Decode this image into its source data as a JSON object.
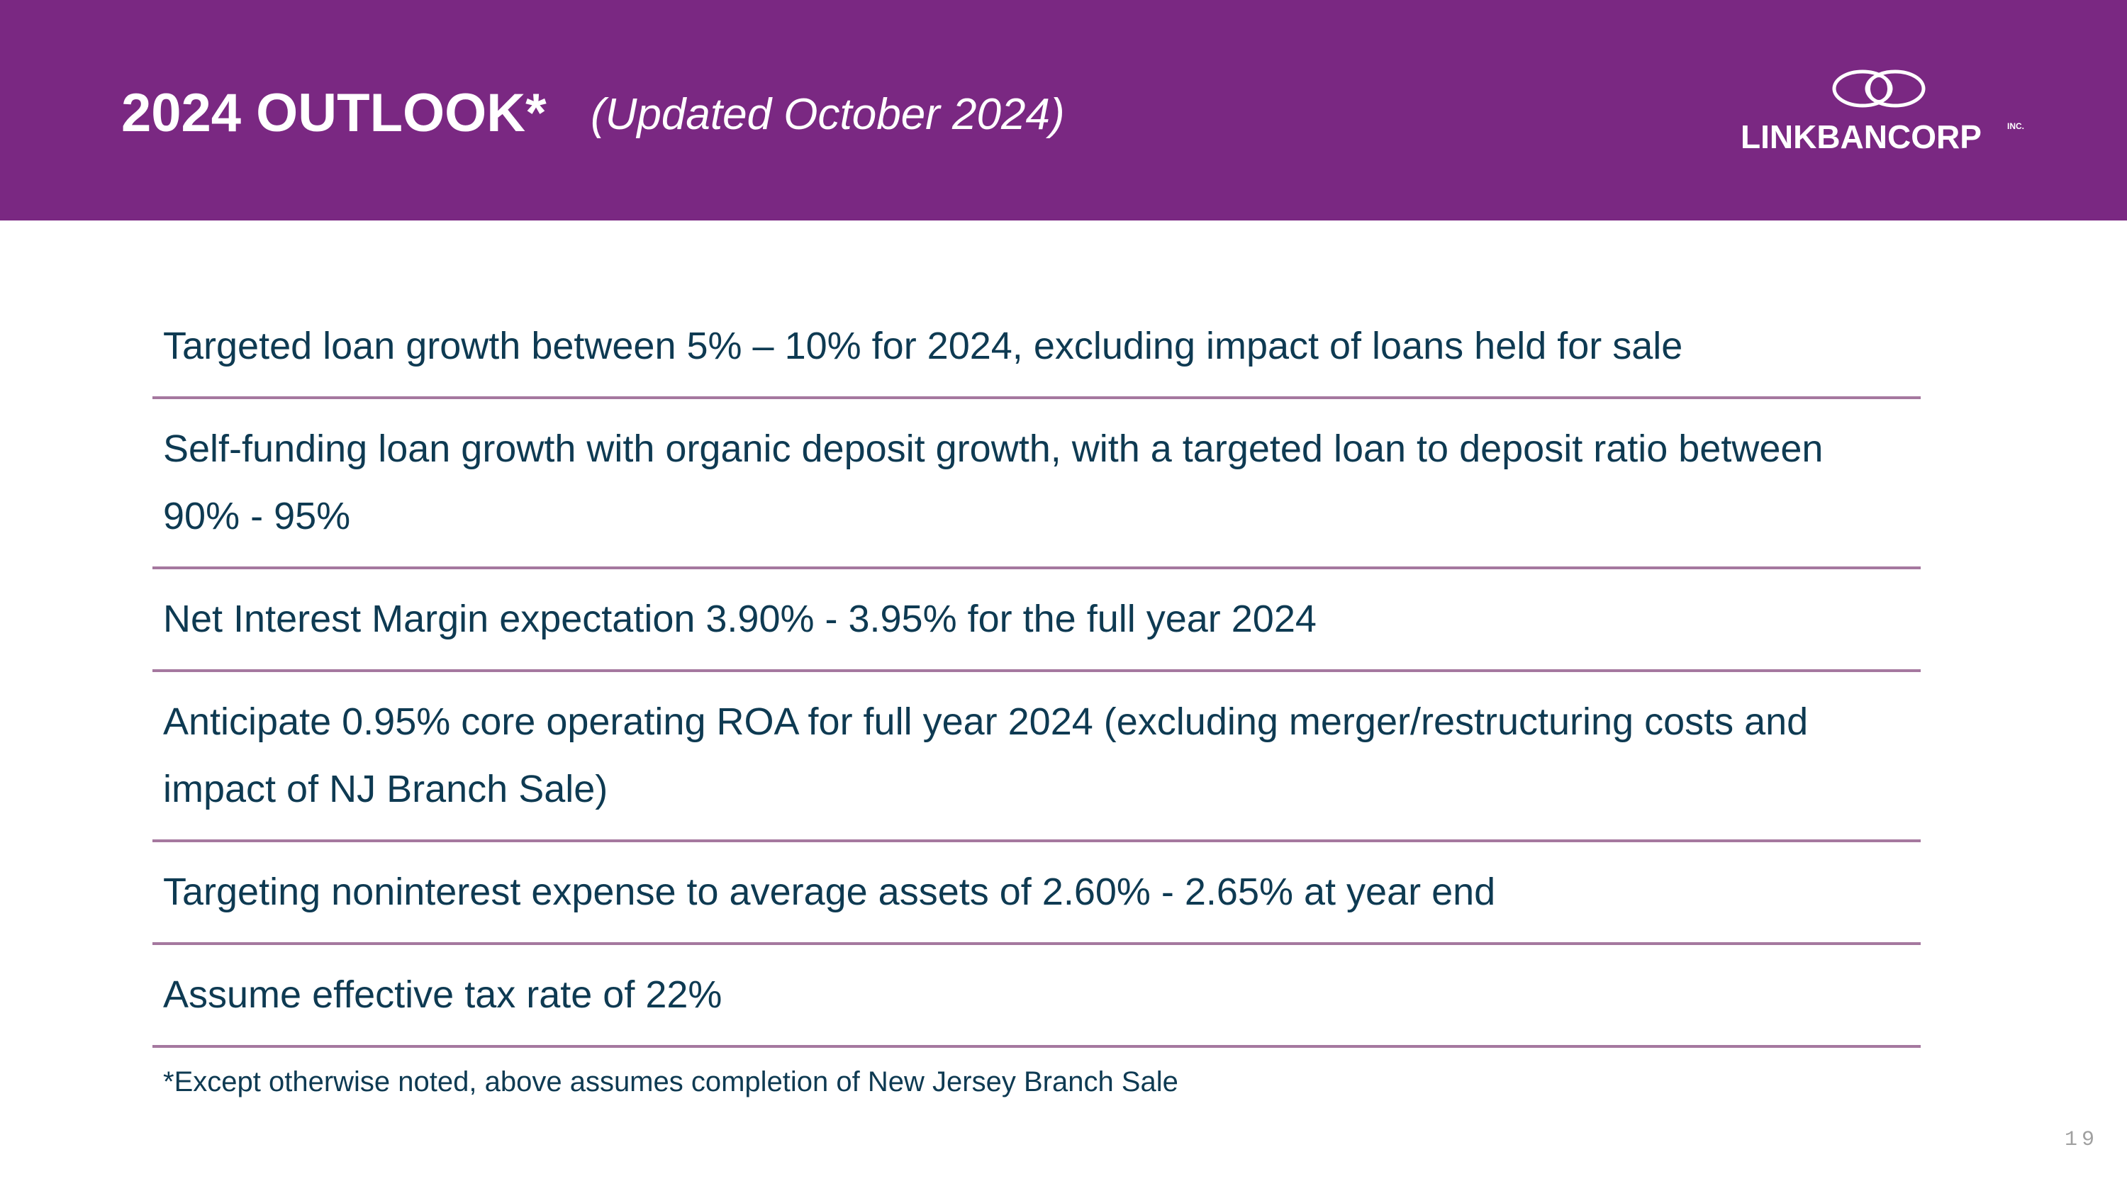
{
  "header": {
    "title": "2024 OUTLOOK*",
    "subtitle": "(Updated October 2024)",
    "background_color": "#7a2882",
    "logo": {
      "icon": "interlocking-rings-logo-icon",
      "text": "LINKBANCORP",
      "suffix": "INC."
    }
  },
  "outlook_items": [
    {
      "text": "Targeted loan growth between 5% – 10% for 2024, excluding impact of loans held for sale"
    },
    {
      "text": "Self-funding loan growth with organic deposit growth, with a targeted loan to deposit ratio between 90% - 95%"
    },
    {
      "text": "Net Interest Margin expectation 3.90% - 3.95% for the full year 2024"
    },
    {
      "text": "Anticipate 0.95% core operating ROA for full year 2024 (excluding merger/restructuring  costs and impact of NJ Branch Sale)"
    },
    {
      "text": "Targeting noninterest expense to average assets of 2.60% - 2.65% at year end"
    },
    {
      "text": "Assume effective tax rate of 22%"
    }
  ],
  "footnote": "*Except otherwise noted, above assumes completion of New Jersey Branch Sale",
  "page_number": "19",
  "colors": {
    "text": "#0e3a52",
    "divider": "#a5789f"
  }
}
